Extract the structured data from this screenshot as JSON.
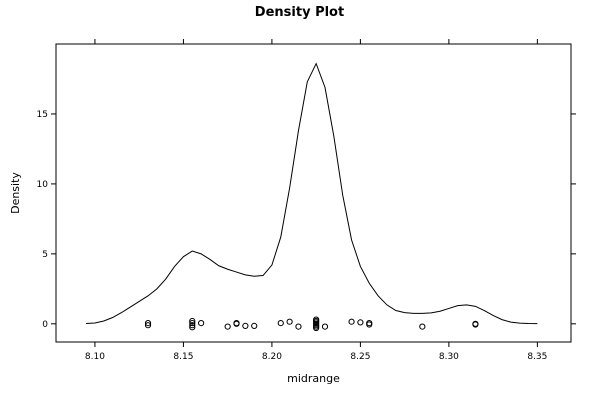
{
  "chart_data": {
    "type": "line",
    "title": "Density Plot",
    "xlabel": "midrange",
    "ylabel": "Density",
    "xlim": [
      8.078,
      8.369
    ],
    "ylim": [
      -1.3,
      20.0
    ],
    "x_ticks": [
      8.1,
      8.15,
      8.2,
      8.25,
      8.3,
      8.35
    ],
    "x_tick_labels": [
      "8.10",
      "8.15",
      "8.20",
      "8.25",
      "8.30",
      "8.35"
    ],
    "y_ticks": [
      0,
      5,
      10,
      15
    ],
    "y_tick_labels": [
      "0",
      "5",
      "10",
      "15"
    ],
    "grid": false,
    "legend": "none",
    "series": [
      {
        "kind": "density-curve",
        "x": [
          8.095,
          8.1,
          8.105,
          8.11,
          8.115,
          8.12,
          8.125,
          8.13,
          8.135,
          8.14,
          8.145,
          8.15,
          8.155,
          8.16,
          8.165,
          8.17,
          8.175,
          8.18,
          8.185,
          8.19,
          8.195,
          8.2,
          8.205,
          8.21,
          8.215,
          8.22,
          8.225,
          8.23,
          8.235,
          8.24,
          8.245,
          8.25,
          8.255,
          8.26,
          8.265,
          8.27,
          8.275,
          8.28,
          8.285,
          8.29,
          8.295,
          8.3,
          8.305,
          8.31,
          8.315,
          8.32,
          8.325,
          8.33,
          8.335,
          8.34,
          8.345,
          8.35
        ],
        "y": [
          0.02,
          0.06,
          0.2,
          0.45,
          0.8,
          1.2,
          1.6,
          2.0,
          2.5,
          3.2,
          4.1,
          4.8,
          5.2,
          5.0,
          4.6,
          4.15,
          3.9,
          3.7,
          3.5,
          3.4,
          3.45,
          4.2,
          6.2,
          9.7,
          13.8,
          17.3,
          18.6,
          16.9,
          13.4,
          9.2,
          6.0,
          4.1,
          2.9,
          2.0,
          1.35,
          0.95,
          0.8,
          0.75,
          0.75,
          0.78,
          0.9,
          1.1,
          1.3,
          1.35,
          1.25,
          0.95,
          0.6,
          0.3,
          0.12,
          0.05,
          0.02,
          0.01
        ]
      },
      {
        "kind": "jittered-points",
        "x": [
          8.13,
          8.13,
          8.155,
          8.155,
          8.155,
          8.155,
          8.16,
          8.175,
          8.18,
          8.18,
          8.185,
          8.19,
          8.205,
          8.21,
          8.215,
          8.225,
          8.225,
          8.225,
          8.225,
          8.225,
          8.225,
          8.225,
          8.23,
          8.245,
          8.25,
          8.255,
          8.255,
          8.285,
          8.315,
          8.315
        ],
        "y": [
          0.05,
          -0.1,
          0.2,
          0.05,
          -0.1,
          -0.25,
          0.05,
          -0.2,
          0.0,
          0.05,
          -0.15,
          -0.15,
          0.05,
          0.15,
          -0.2,
          0.3,
          0.2,
          0.1,
          0.0,
          -0.1,
          -0.2,
          -0.3,
          -0.2,
          0.15,
          0.1,
          0.05,
          -0.05,
          -0.2,
          0.0,
          -0.05
        ]
      }
    ]
  }
}
